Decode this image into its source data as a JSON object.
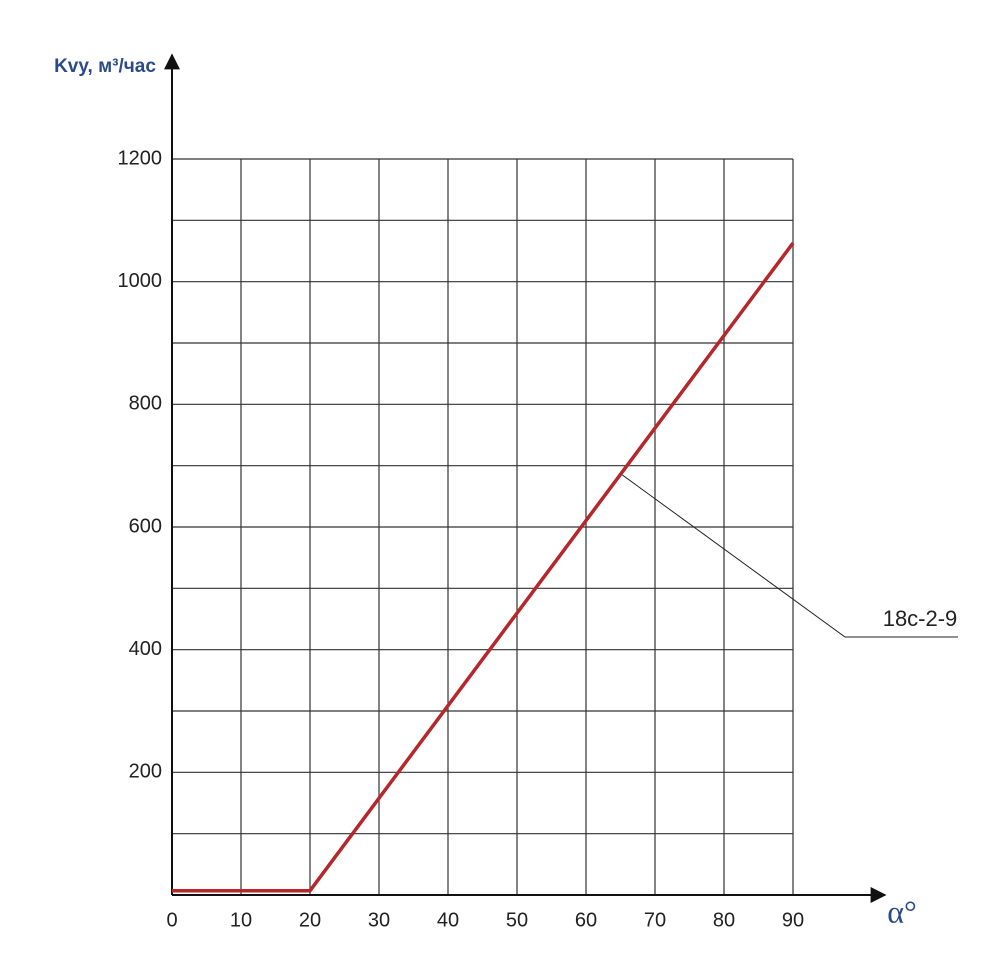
{
  "chart_data": {
    "type": "line",
    "ylabel": "Kvy, м³/час",
    "xlabel": "α°",
    "x": [
      0,
      20,
      90
    ],
    "series": [
      {
        "name": "18c-2-9",
        "color": "#b5272a",
        "values": [
          7,
          7,
          1063
        ]
      }
    ],
    "xlim": [
      0,
      90
    ],
    "xticks": [
      0,
      10,
      20,
      30,
      40,
      50,
      60,
      70,
      80,
      90
    ],
    "ylim": [
      0,
      1200
    ],
    "yticks": [
      200,
      400,
      600,
      800,
      1000,
      1200
    ],
    "ygrid": [
      100,
      200,
      300,
      400,
      500,
      600,
      700,
      800,
      900,
      1000,
      1100,
      1200
    ],
    "grid": true
  }
}
